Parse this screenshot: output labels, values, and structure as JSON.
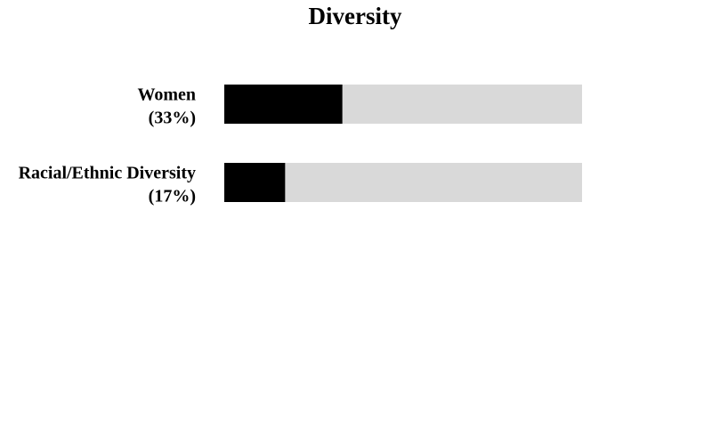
{
  "chart_data": {
    "type": "bar",
    "title": "Diversity",
    "categories": [
      "Women",
      "Racial/Ethnic Diversity"
    ],
    "values": [
      33,
      17
    ],
    "value_labels": [
      "(33%)",
      "(17%)"
    ],
    "xlim": [
      0,
      100
    ],
    "color": "#000000",
    "track_color": "#d9d9d9"
  }
}
